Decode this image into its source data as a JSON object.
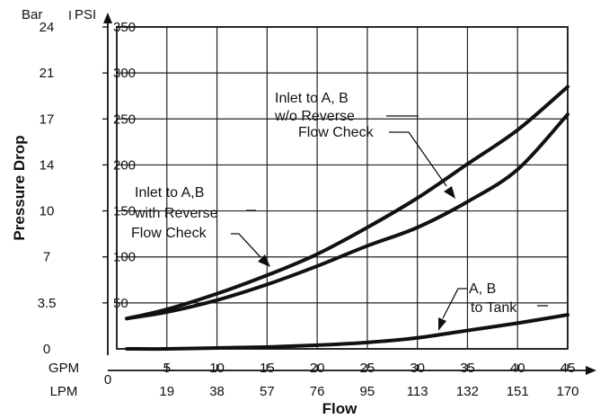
{
  "chart_data": {
    "type": "line",
    "xlabel": "Flow",
    "ylabel": "Pressure Drop",
    "x_unit_primary": "GPM",
    "x_unit_secondary": "LPM",
    "y_unit_primary": "PSI",
    "y_unit_secondary": "Bar",
    "x_origin_label": "0",
    "xlim": [
      0,
      45
    ],
    "ylim": [
      0,
      350
    ],
    "x_ticks_gpm": [
      "5",
      "10",
      "15",
      "20",
      "25",
      "30",
      "35",
      "40",
      "45"
    ],
    "x_ticks_lpm": [
      "19",
      "38",
      "57",
      "76",
      "95",
      "113",
      "132",
      "151",
      "170"
    ],
    "y_ticks_psi": [
      "50",
      "100",
      "150",
      "200",
      "250",
      "300",
      "350"
    ],
    "y_ticks_bar": [
      "0",
      "3.5",
      "7",
      "10",
      "14",
      "17",
      "21",
      "24"
    ],
    "grid": true,
    "series": [
      {
        "label_lines": [
          "Inlet to A, B",
          "w/o Reverse",
          "Flow Check"
        ],
        "x": [
          1,
          5,
          10,
          15,
          20,
          25,
          30,
          35,
          40,
          45
        ],
        "y": [
          33,
          43,
          60,
          80,
          103,
          132,
          164,
          201,
          238,
          285
        ]
      },
      {
        "label_lines": [
          "Inlet to A,B",
          "with Reverse",
          "Flow Check"
        ],
        "x": [
          1,
          5,
          10,
          15,
          20,
          25,
          30,
          35,
          40,
          45
        ],
        "y": [
          33,
          40,
          53,
          70,
          90,
          112,
          132,
          160,
          195,
          255
        ]
      },
      {
        "label_lines": [
          "A, B",
          "to Tank"
        ],
        "x": [
          1,
          5,
          10,
          15,
          20,
          25,
          30,
          35,
          40,
          45
        ],
        "y": [
          0,
          0,
          1,
          2,
          4,
          7,
          12,
          20,
          28,
          37
        ]
      }
    ]
  }
}
